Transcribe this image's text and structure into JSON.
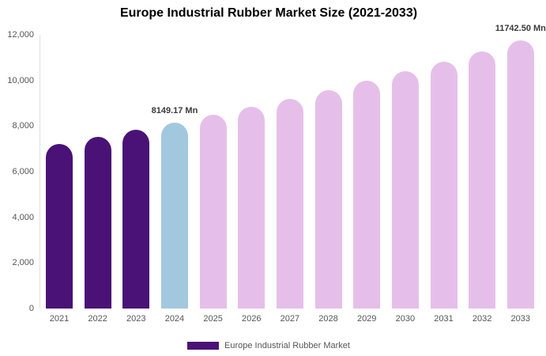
{
  "title": "Europe Industrial Rubber Market Size (2021-2033)",
  "legend": {
    "label": "Europe Industrial Rubber Market",
    "swatch_color": "#4A1277"
  },
  "chart_data": {
    "type": "bar",
    "title": "Europe Industrial Rubber Market Size (2021-2033)",
    "series_name": "Europe Industrial Rubber Market",
    "categories": [
      "2021",
      "2022",
      "2023",
      "2024",
      "2025",
      "2026",
      "2027",
      "2028",
      "2029",
      "2030",
      "2031",
      "2032",
      "2033"
    ],
    "values": [
      7220,
      7515,
      7825,
      8149.17,
      8487,
      8838,
      9204,
      9586,
      9983,
      10396,
      10827,
      11275,
      11742.5
    ],
    "unit": "Mn",
    "ylim": [
      0,
      12000
    ],
    "ytick_values": [
      0,
      2000,
      4000,
      6000,
      8000,
      10000,
      12000
    ],
    "ytick_labels": [
      "0",
      "2,000",
      "4,000",
      "6,000",
      "8,000",
      "10,000",
      "12,000"
    ],
    "grid": false,
    "legend_position": "bottom",
    "bar_roles": [
      "historical",
      "historical",
      "historical",
      "current",
      "forecast",
      "forecast",
      "forecast",
      "forecast",
      "forecast",
      "forecast",
      "forecast",
      "forecast",
      "forecast"
    ],
    "role_colors": {
      "historical": "#4A1277",
      "current": "#A2C8DF",
      "forecast": "#E5BFE9"
    },
    "annotations": [
      {
        "category": "2024",
        "text": "8149.17 Mn"
      },
      {
        "category": "2033",
        "text": "11742.50 Mn"
      }
    ]
  }
}
